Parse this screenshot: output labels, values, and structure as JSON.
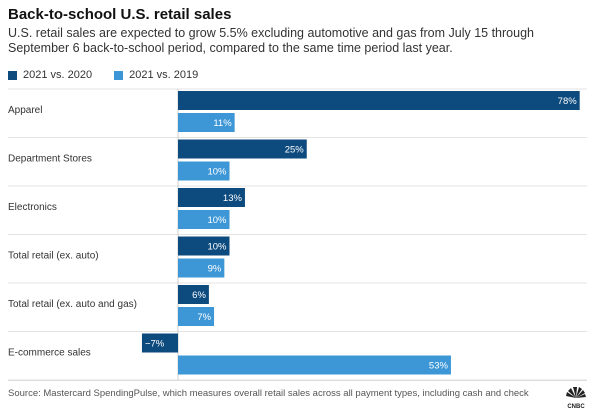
{
  "title": "Back-to-school U.S. retail sales",
  "subtitle": "U.S. retail sales are expected to grow 5.5% excluding automotive and gas from July 15 through September 6 back-to-school period, compared to the same time period last year.",
  "source": "Source: Mastercard SpendingPulse, which measures overall retail sales across all payment types, including cash and check",
  "logo_text": "CNBC",
  "colors": {
    "series_2020": "#0d4a7e",
    "series_2019": "#3d97d6"
  },
  "chart_data": {
    "type": "bar",
    "orientation": "horizontal",
    "categories": [
      "Apparel",
      "Department Stores",
      "Electronics",
      "Total retail (ex. auto)",
      "Total retail (ex. auto and gas)",
      "E-commerce sales"
    ],
    "series": [
      {
        "name": "2021 vs. 2020",
        "values": [
          78,
          25,
          13,
          10,
          6,
          -7
        ],
        "labels": [
          "78%",
          "25%",
          "13%",
          "10%",
          "6%",
          "−7%"
        ],
        "color": "#0d4a7e"
      },
      {
        "name": "2021 vs. 2019",
        "values": [
          11,
          10,
          10,
          9,
          7,
          53
        ],
        "labels": [
          "11%",
          "10%",
          "10%",
          "9%",
          "7%",
          "53%"
        ],
        "color": "#3d97d6"
      }
    ],
    "title": "Back-to-school U.S. retail sales",
    "xlabel": "",
    "ylabel": "",
    "xlim": [
      -7,
      78
    ],
    "grid": true,
    "legend": "top-left"
  }
}
